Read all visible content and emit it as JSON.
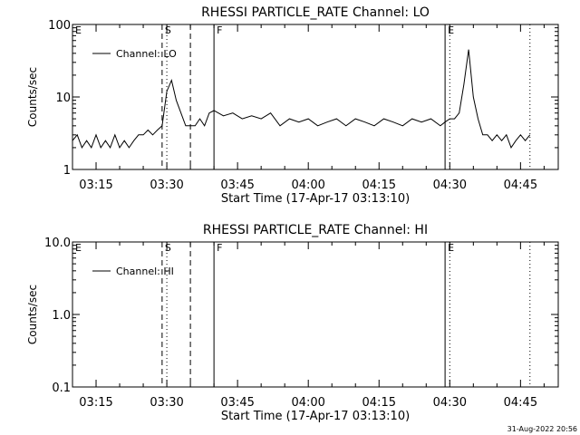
{
  "chart_data": [
    {
      "type": "line",
      "title": "RHESSI PARTICLE_RATE Channel: LO",
      "xlabel": "Start Time (17-Apr-17 03:13:10)",
      "ylabel": "Counts/sec",
      "yscale": "log",
      "ylim": [
        1,
        100
      ],
      "xlim": [
        "03:10",
        "04:53"
      ],
      "x_ticks": [
        "03:15",
        "03:30",
        "03:45",
        "04:00",
        "04:15",
        "04:30",
        "04:45"
      ],
      "y_ticks": [
        "1",
        "10",
        "100"
      ],
      "legend": {
        "label": "Channel: LO",
        "position": "top-left"
      },
      "markers": [
        {
          "label": "E",
          "time": "03:10",
          "style": "solid"
        },
        {
          "label": "S",
          "time": "03:29",
          "style": "dashed"
        },
        {
          "label": "",
          "time": "03:30",
          "style": "dotted"
        },
        {
          "label": "",
          "time": "03:35",
          "style": "dashed"
        },
        {
          "label": "F",
          "time": "03:40",
          "style": "solid"
        },
        {
          "label": "E",
          "time": "04:29",
          "style": "solid"
        },
        {
          "label": "",
          "time": "04:30",
          "style": "dotted"
        },
        {
          "label": "",
          "time": "04:47",
          "style": "dotted"
        }
      ],
      "series": [
        {
          "name": "Channel: LO",
          "x": [
            "03:10",
            "03:11",
            "03:12",
            "03:13",
            "03:14",
            "03:15",
            "03:16",
            "03:17",
            "03:18",
            "03:19",
            "03:20",
            "03:21",
            "03:22",
            "03:23",
            "03:24",
            "03:25",
            "03:26",
            "03:27",
            "03:28",
            "03:29",
            "03:30",
            "03:31",
            "03:32",
            "03:33",
            "03:34",
            "03:35",
            "03:36",
            "03:37",
            "03:38",
            "03:39",
            "03:40",
            "03:42",
            "03:44",
            "03:46",
            "03:48",
            "03:50",
            "03:52",
            "03:54",
            "03:56",
            "03:58",
            "04:00",
            "04:02",
            "04:04",
            "04:06",
            "04:08",
            "04:10",
            "04:12",
            "04:14",
            "04:16",
            "04:18",
            "04:20",
            "04:22",
            "04:24",
            "04:26",
            "04:28",
            "04:29",
            "04:30",
            "04:31",
            "04:32",
            "04:33",
            "04:34",
            "04:35",
            "04:36",
            "04:37",
            "04:38",
            "04:39",
            "04:40",
            "04:41",
            "04:42",
            "04:43",
            "04:44",
            "04:45",
            "04:46",
            "04:47"
          ],
          "values": [
            2.5,
            3,
            2,
            2.5,
            2,
            3,
            2,
            2.5,
            2,
            3,
            2,
            2.5,
            2,
            2.5,
            3,
            3,
            3.5,
            3,
            3.5,
            4,
            12,
            17,
            9,
            6,
            4,
            4,
            4,
            5,
            4,
            6,
            6.5,
            5.5,
            6,
            5,
            5.5,
            5,
            6,
            4,
            5,
            4.5,
            5,
            4,
            4.5,
            5,
            4,
            5,
            4.5,
            4,
            5,
            4.5,
            4,
            5,
            4.5,
            5,
            4,
            4.5,
            5,
            5,
            6,
            15,
            45,
            10,
            5,
            3,
            3,
            2.5,
            3,
            2.5,
            3,
            2,
            2.5,
            3,
            2.5,
            3
          ]
        }
      ]
    },
    {
      "type": "line",
      "title": "RHESSI PARTICLE_RATE Channel: HI",
      "xlabel": "Start Time (17-Apr-17 03:13:10)",
      "ylabel": "Counts/sec",
      "yscale": "log",
      "ylim": [
        0.1,
        10
      ],
      "xlim": [
        "03:10",
        "04:53"
      ],
      "x_ticks": [
        "03:15",
        "03:30",
        "03:45",
        "04:00",
        "04:15",
        "04:30",
        "04:45"
      ],
      "y_ticks": [
        "0.1",
        "1.0",
        "10.0"
      ],
      "legend": {
        "label": "Channel: HI",
        "position": "top-left"
      },
      "markers": [
        {
          "label": "E",
          "time": "03:10",
          "style": "solid"
        },
        {
          "label": "S",
          "time": "03:29",
          "style": "dashed"
        },
        {
          "label": "",
          "time": "03:30",
          "style": "dotted"
        },
        {
          "label": "",
          "time": "03:35",
          "style": "dashed"
        },
        {
          "label": "F",
          "time": "03:40",
          "style": "solid"
        },
        {
          "label": "E",
          "time": "04:29",
          "style": "solid"
        },
        {
          "label": "",
          "time": "04:30",
          "style": "dotted"
        },
        {
          "label": "",
          "time": "04:47",
          "style": "dotted"
        }
      ],
      "series": []
    }
  ],
  "footer": {
    "date": "31-Aug-2022 20:56"
  }
}
